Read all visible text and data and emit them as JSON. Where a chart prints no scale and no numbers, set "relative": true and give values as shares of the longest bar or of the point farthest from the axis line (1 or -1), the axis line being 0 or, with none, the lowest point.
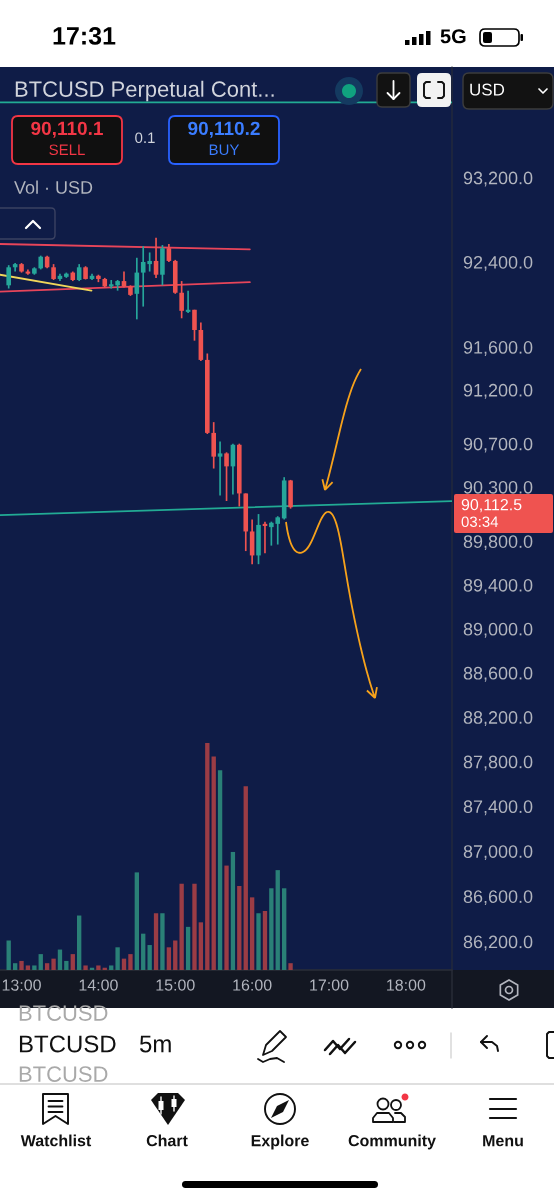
{
  "chart_data": [
    {
      "type": "candlestick",
      "title": "BTCUSD Perpetual Cont...",
      "x": [
        12.833,
        12.917,
        13,
        13.083,
        13.167,
        13.25,
        13.333,
        13.417,
        13.5,
        13.583,
        13.667,
        13.75,
        13.833,
        13.917,
        14,
        14.083,
        14.167,
        14.25,
        14.333,
        14.417,
        14.5,
        14.583,
        14.667,
        14.75,
        14.833,
        14.917,
        15,
        15.083,
        15.167,
        15.25,
        15.333,
        15.417,
        15.5,
        15.583,
        15.667,
        15.75,
        15.833,
        15.917,
        16,
        16.083,
        16.167,
        16.25,
        16.333,
        16.417,
        16.5
      ],
      "ohlc": [
        [
          92180,
          92370,
          92150,
          92350
        ],
        [
          92350,
          92390,
          92310,
          92380
        ],
        [
          92380,
          92390,
          92300,
          92310
        ],
        [
          92310,
          92330,
          92280,
          92290
        ],
        [
          92290,
          92350,
          92280,
          92340
        ],
        [
          92340,
          92460,
          92330,
          92450
        ],
        [
          92450,
          92460,
          92340,
          92350
        ],
        [
          92350,
          92380,
          92230,
          92240
        ],
        [
          92240,
          92290,
          92220,
          92270
        ],
        [
          92260,
          92300,
          92250,
          92290
        ],
        [
          92300,
          92310,
          92220,
          92230
        ],
        [
          92230,
          92380,
          92220,
          92350
        ],
        [
          92350,
          92360,
          92235,
          92240
        ],
        [
          92240,
          92290,
          92230,
          92270
        ],
        [
          92270,
          92280,
          92210,
          92240
        ],
        [
          92240,
          92250,
          92160,
          92170
        ],
        [
          92170,
          92230,
          92150,
          92190
        ],
        [
          92180,
          92230,
          92130,
          92220
        ],
        [
          92220,
          92310,
          92160,
          92170
        ],
        [
          92170,
          92180,
          92080,
          92090
        ],
        [
          92100,
          92440,
          91860,
          92300
        ],
        [
          92300,
          92550,
          91980,
          92400
        ],
        [
          92380,
          92490,
          92310,
          92410
        ],
        [
          92410,
          92630,
          92250,
          92280
        ],
        [
          92280,
          92560,
          92180,
          92530
        ],
        [
          92530,
          92570,
          92400,
          92410
        ],
        [
          92410,
          92420,
          92100,
          92110
        ],
        [
          92110,
          92220,
          91870,
          91940
        ],
        [
          91930,
          92130,
          91920,
          91950
        ],
        [
          91950,
          91950,
          91660,
          91760
        ],
        [
          91760,
          91830,
          91470,
          91480
        ],
        [
          91480,
          91540,
          90790,
          90800
        ],
        [
          90800,
          90900,
          90470,
          90580
        ],
        [
          90580,
          90720,
          90220,
          90610
        ],
        [
          90610,
          90620,
          90170,
          90490
        ],
        [
          90490,
          90700,
          90230,
          90690
        ],
        [
          90690,
          90700,
          90120,
          90240
        ],
        [
          90240,
          90240,
          89710,
          89890
        ],
        [
          89890,
          90000,
          89590,
          89670
        ],
        [
          89670,
          90050,
          89590,
          89950
        ],
        [
          89960,
          89980,
          89690,
          89940
        ],
        [
          89930,
          89980,
          89760,
          89970
        ],
        [
          89960,
          90030,
          89770,
          90020
        ],
        [
          90010,
          90390,
          90000,
          90360
        ],
        [
          90360,
          90365,
          90100,
          90112.5
        ]
      ],
      "colors": [
        "#26a69a",
        "#26a69a",
        "#ef5350",
        "#ef5350",
        "#26a69a",
        "#26a69a",
        "#ef5350",
        "#ef5350",
        "#26a69a",
        "#26a69a",
        "#ef5350",
        "#26a69a",
        "#ef5350",
        "#26a69a",
        "#ef5350",
        "#ef5350",
        "#26a69a",
        "#26a69a",
        "#ef5350",
        "#ef5350",
        "#26a69a",
        "#26a69a",
        "#26a69a",
        "#ef5350",
        "#26a69a",
        "#ef5350",
        "#ef5350",
        "#ef5350",
        "#26a69a",
        "#ef5350",
        "#ef5350",
        "#ef5350",
        "#ef5350",
        "#26a69a",
        "#ef5350",
        "#26a69a",
        "#ef5350",
        "#ef5350",
        "#ef5350",
        "#26a69a",
        "#ef5350",
        "#26a69a",
        "#26a69a",
        "#26a69a",
        "#ef5350"
      ],
      "series": [
        {
          "type": "line",
          "x": [
            12.72,
            15.97
          ],
          "values": [
            92570,
            92520
          ],
          "color": "#e8455a"
        },
        {
          "type": "line",
          "x": [
            12.72,
            15.97
          ],
          "values": [
            92120,
            92210
          ],
          "color": "#e8455a"
        },
        {
          "type": "line",
          "x": [
            12.72,
            13.91
          ],
          "values": [
            92280,
            92130
          ],
          "color": "#f0d65a"
        },
        {
          "type": "line",
          "x": [
            12.72,
            18.6
          ],
          "values": [
            90040,
            90170
          ],
          "color": "#22ab94"
        }
      ],
      "ref_lines": [
        {
          "axis": "y",
          "value": 93920,
          "color": "#22ab94"
        }
      ],
      "xlim": [
        12.72,
        18.6
      ],
      "xticks": [
        {
          "value": 13,
          "label": "13:00"
        },
        {
          "value": 14,
          "label": "14:00"
        },
        {
          "value": 15,
          "label": "15:00"
        },
        {
          "value": 16,
          "label": "16:00"
        },
        {
          "value": 17,
          "label": "17:00"
        },
        {
          "value": 18,
          "label": "18:00"
        }
      ],
      "log": true,
      "ylim": [
        85950,
        94260
      ],
      "yticks": [
        {
          "value": 93200,
          "label": "93,200.0"
        },
        {
          "value": 92400,
          "label": "92,400.0"
        },
        {
          "value": 91600,
          "label": "91,600.0"
        },
        {
          "value": 91200,
          "label": "91,200.0"
        },
        {
          "value": 90700,
          "label": "90,700.0"
        },
        {
          "value": 90300,
          "label": "90,300.0"
        },
        {
          "value": 89800,
          "label": "89,800.0"
        },
        {
          "value": 89400,
          "label": "89,400.0"
        },
        {
          "value": 89000,
          "label": "89,000.0"
        },
        {
          "value": 88600,
          "label": "88,600.0"
        },
        {
          "value": 88200,
          "label": "88,200.0"
        },
        {
          "value": 87800,
          "label": "87,800.0"
        },
        {
          "value": 87400,
          "label": "87,400.0"
        },
        {
          "value": 87000,
          "label": "87,000.0"
        },
        {
          "value": 86600,
          "label": "86,600.0"
        },
        {
          "value": 86200,
          "label": "86,200.0"
        }
      ],
      "annotations": [
        "90,110.1",
        "SELL",
        "0.1",
        "90,110.2",
        "BUY",
        "USD",
        "90,112.5",
        "03:34",
        "17:31",
        "5G",
        "BTCUSD",
        "BTCUSD",
        "5m",
        "BTCUSD",
        "Watchlist",
        "Chart",
        "Explore",
        "Community",
        "Menu"
      ]
    },
    {
      "type": "bar",
      "title": "Vol · USD",
      "relative": true,
      "x": [
        12.833,
        12.917,
        13,
        13.083,
        13.167,
        13.25,
        13.333,
        13.417,
        13.5,
        13.583,
        13.667,
        13.75,
        13.833,
        13.917,
        14,
        14.083,
        14.167,
        14.25,
        14.333,
        14.417,
        14.5,
        14.583,
        14.667,
        14.75,
        14.833,
        14.917,
        15,
        15.083,
        15.167,
        15.25,
        15.333,
        15.417,
        15.5,
        15.583,
        15.667,
        15.75,
        15.833,
        15.917,
        16,
        16.083,
        16.167,
        16.25,
        16.333,
        16.417,
        16.5
      ],
      "values": [
        0.13,
        0.03,
        0.04,
        0.02,
        0.02,
        0.07,
        0.03,
        0.05,
        0.09,
        0.04,
        0.07,
        0.24,
        0.02,
        0.01,
        0.02,
        0.01,
        0.02,
        0.1,
        0.05,
        0.07,
        0.43,
        0.16,
        0.11,
        0.25,
        0.25,
        0.1,
        0.13,
        0.38,
        0.19,
        0.38,
        0.21,
        1,
        0.94,
        0.88,
        0.46,
        0.52,
        0.37,
        0.81,
        0.32,
        0.25,
        0.26,
        0.36,
        0.44,
        0.36,
        0.03
      ],
      "colors": [
        "#2a8077",
        "#2a8077",
        "#9b3c45",
        "#9b3c45",
        "#2a8077",
        "#2a8077",
        "#9b3c45",
        "#9b3c45",
        "#2a8077",
        "#2a8077",
        "#9b3c45",
        "#2a8077",
        "#9b3c45",
        "#2a8077",
        "#9b3c45",
        "#9b3c45",
        "#2a8077",
        "#2a8077",
        "#9b3c45",
        "#9b3c45",
        "#2a8077",
        "#2a8077",
        "#2a8077",
        "#9b3c45",
        "#2a8077",
        "#9b3c45",
        "#9b3c45",
        "#9b3c45",
        "#2a8077",
        "#9b3c45",
        "#9b3c45",
        "#9b3c45",
        "#9b3c45",
        "#2a8077",
        "#9b3c45",
        "#2a8077",
        "#9b3c45",
        "#9b3c45",
        "#9b3c45",
        "#2a8077",
        "#9b3c45",
        "#2a8077",
        "#2a8077",
        "#2a8077",
        "#9b3c45"
      ],
      "xlim": [
        12.72,
        18.6
      ]
    }
  ]
}
